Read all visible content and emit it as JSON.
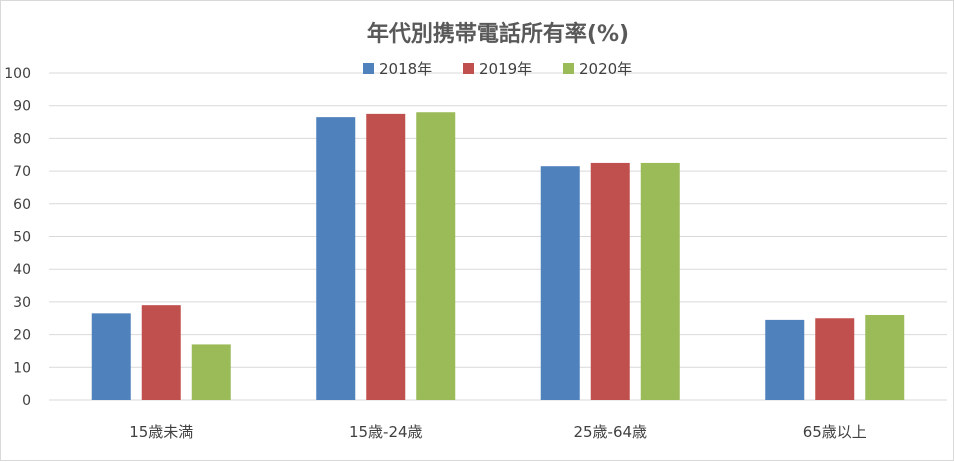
{
  "chart_data": {
    "type": "bar",
    "title": "年代別携帯電話所有率(%)",
    "categories": [
      "15歳未満",
      "15歳-24歳",
      "25歳-64歳",
      "65歳以上"
    ],
    "series": [
      {
        "name": "2018年",
        "color": "#4f81bd",
        "values": [
          26.5,
          86.5,
          71.5,
          24.5
        ]
      },
      {
        "name": "2019年",
        "color": "#c0504d",
        "values": [
          29,
          87.5,
          72.5,
          25
        ]
      },
      {
        "name": "2020年",
        "color": "#9bbb59",
        "values": [
          17,
          88,
          72.5,
          26
        ]
      }
    ],
    "ylim": [
      0,
      100
    ],
    "yticks": [
      0,
      10,
      20,
      30,
      40,
      50,
      60,
      70,
      80,
      90,
      100
    ],
    "xlabel": "",
    "ylabel": "",
    "grid": true,
    "legend_position": "top"
  }
}
